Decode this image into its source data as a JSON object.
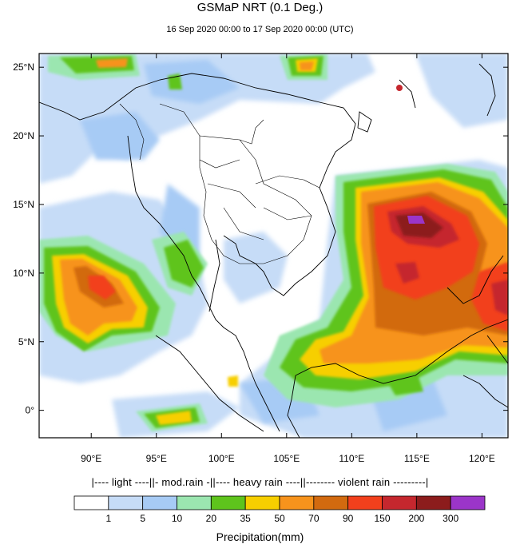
{
  "title": "GSMaP NRT (0.1 Deg.)",
  "subtitle": "16 Sep 2020 00:00 to 17 Sep 2020 00:00 (UTC)",
  "map": {
    "lon_range": [
      86,
      122
    ],
    "lat_range": [
      -2,
      26
    ],
    "lon_ticks": [
      90,
      95,
      100,
      105,
      110,
      115,
      120
    ],
    "lon_tick_labels": [
      "90°E",
      "95°E",
      "100°E",
      "105°E",
      "110°E",
      "115°E",
      "120°E"
    ],
    "lat_ticks": [
      0,
      5,
      10,
      15,
      20,
      25
    ],
    "lat_tick_labels": [
      "0°",
      "5°N",
      "10°N",
      "15°N",
      "20°N",
      "25°N"
    ]
  },
  "legend": {
    "category_line": "|---- light ----||- mod.rain -||---- heavy rain ----||-------- violent rain ---------|",
    "colors": [
      "#ffffff",
      "#c6dcf7",
      "#a7cbf5",
      "#9be6b0",
      "#5ec41c",
      "#f7cf00",
      "#f7931c",
      "#d26a0f",
      "#f2401c",
      "#c5272e",
      "#8c1c1c",
      "#9b35c9"
    ],
    "labels": [
      "1",
      "5",
      "10",
      "20",
      "35",
      "50",
      "70",
      "90",
      "150",
      "200",
      "300"
    ],
    "xlabel": "Precipitation(mm)"
  }
}
